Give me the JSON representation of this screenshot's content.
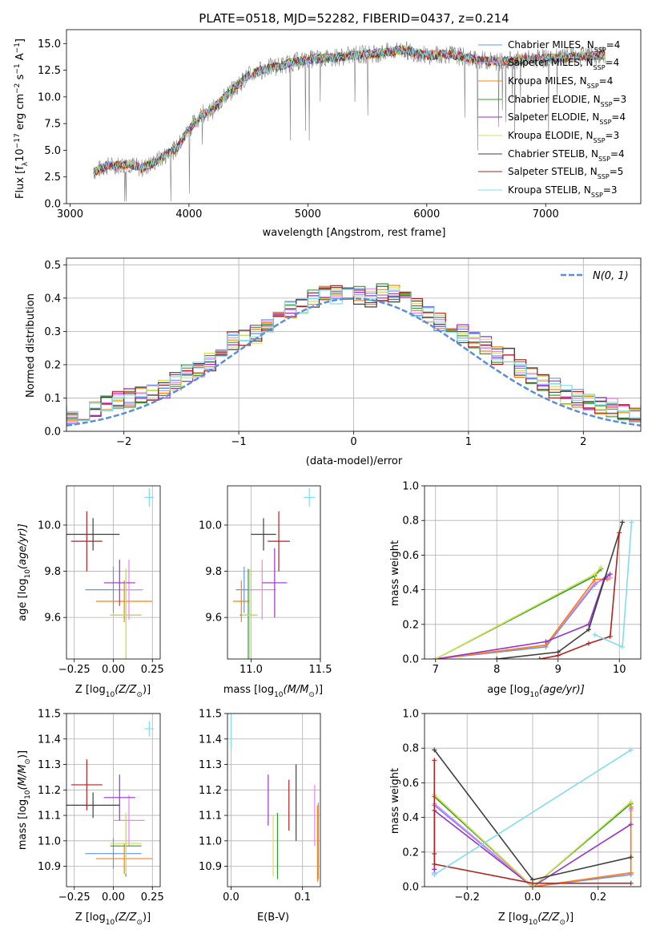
{
  "chart_data": [
    {
      "type": "line",
      "title": "PLATE=0518, MJD=52282, FIBERID=0437, z=0.214",
      "xlabel": "wavelength [Angstrom, rest frame]",
      "ylabel_main": "Flux [f",
      "ylabel_sub": "λ",
      "ylabel_rest": "10",
      "ylabel_exp1": "−17",
      "ylabel_mid": " erg cm",
      "ylabel_exp2": "−2",
      "ylabel_s": " s",
      "ylabel_exp3": "−1",
      "ylabel_a": " A",
      "ylabel_exp4": "−1",
      "ylabel_end": "]",
      "xlim": [
        2970,
        7800
      ],
      "ylim": [
        0,
        16.3
      ],
      "xticks": [
        "3000",
        "4000",
        "5000",
        "6000",
        "7000"
      ],
      "xtick_values": [
        3000,
        4000,
        5000,
        6000,
        7000
      ],
      "yticks": [
        "0.0",
        "2.5",
        "5.0",
        "7.5",
        "10.0",
        "12.5",
        "15.0"
      ],
      "ytick_values": [
        0,
        2.5,
        5,
        7.5,
        10,
        12.5,
        15
      ],
      "spectrum_shape": {
        "x": [
          3200,
          3300,
          3400,
          3500,
          3600,
          3700,
          3800,
          3900,
          4000,
          4100,
          4200,
          4300,
          4400,
          4500,
          4600,
          4700,
          4800,
          4900,
          5000,
          5200,
          5400,
          5600,
          5800,
          6000,
          6200,
          6400,
          6600,
          6800,
          7000,
          7200,
          7400,
          7500
        ],
        "y": [
          3.0,
          3.5,
          3.6,
          3.7,
          3.3,
          3.8,
          4.5,
          5.2,
          7.0,
          8.3,
          8.8,
          10.0,
          11.0,
          12.0,
          12.5,
          12.8,
          13.0,
          13.3,
          13.5,
          13.7,
          13.9,
          14.1,
          14.4,
          13.9,
          14.0,
          13.5,
          13.3,
          13.5,
          13.6,
          13.7,
          13.9,
          13.9
        ]
      },
      "legend_position": "upper right",
      "legend": [
        {
          "name": "Chabrier MILES, N",
          "sub": "SSP",
          "tail": "=4",
          "color": "#6495ed"
        },
        {
          "name": "Salpeter MILES, N",
          "sub": "SSP",
          "tail": "=4",
          "color": "#ee82ee"
        },
        {
          "name": "Kroupa MILES, N",
          "sub": "SSP",
          "tail": "=4",
          "color": "#ff7f0e"
        },
        {
          "name": "Chabrier ELODIE, N",
          "sub": "SSP",
          "tail": "=3",
          "color": "#2ca02c"
        },
        {
          "name": "Salpeter ELODIE, N",
          "sub": "SSP",
          "tail": "=4",
          "color": "#9932cc"
        },
        {
          "name": "Kroupa ELODIE, N",
          "sub": "SSP",
          "tail": "=3",
          "color": "#d4e157"
        },
        {
          "name": "Chabrier STELIB, N",
          "sub": "SSP",
          "tail": "=4",
          "color": "#404040"
        },
        {
          "name": "Salpeter STELIB, N",
          "sub": "SSP",
          "tail": "=5",
          "color": "#b22222"
        },
        {
          "name": "Kroupa STELIB, N",
          "sub": "SSP",
          "tail": "=3",
          "color": "#80deea"
        }
      ]
    },
    {
      "type": "bar",
      "xlabel": "(data-model)/error",
      "ylabel": "Normed distribution",
      "xlim": [
        -2.5,
        2.5
      ],
      "ylim": [
        0,
        0.52
      ],
      "xticks": [
        "−2",
        "−1",
        "0",
        "1",
        "2"
      ],
      "xtick_values": [
        -2,
        -1,
        0,
        1,
        2
      ],
      "yticks": [
        "0.0",
        "0.1",
        "0.2",
        "0.3",
        "0.4",
        "0.5"
      ],
      "ytick_values": [
        0,
        0.1,
        0.2,
        0.3,
        0.4,
        0.5
      ],
      "legend_label": "N(0, 1)",
      "legend_position": "upper right",
      "gauss_color": "#5b8ed6",
      "bin_width": 0.1,
      "hist_colors": [
        "#6495ed",
        "#ee82ee",
        "#ff7f0e",
        "#2ca02c",
        "#9932cc",
        "#d4e157",
        "#404040",
        "#b22222",
        "#80deea"
      ],
      "hist_shape": [
        0.03,
        0.03,
        0.03,
        0.04,
        0.05,
        0.05,
        0.06,
        0.07,
        0.08,
        0.09,
        0.1,
        0.11,
        0.12,
        0.13,
        0.15,
        0.17,
        0.19,
        0.21,
        0.24,
        0.27,
        0.28,
        0.29,
        0.32,
        0.34,
        0.37,
        0.38,
        0.4,
        0.42,
        0.41,
        0.42,
        0.41,
        0.4,
        0.42,
        0.41,
        0.4,
        0.37,
        0.35,
        0.33,
        0.31,
        0.29,
        0.28,
        0.26,
        0.23,
        0.22,
        0.19,
        0.17,
        0.15,
        0.13,
        0.11,
        0.1,
        0.09,
        0.08,
        0.07,
        0.06,
        0.05,
        0.05,
        0.04,
        0.04,
        0.03,
        0.03
      ]
    },
    {
      "type": "scatter",
      "xlabel": "Z [log",
      "xlabel_sub": "10",
      "xlabel_rest": "(Z/Z",
      "xlabel_sun": "⊙",
      "xlabel_end": ")]",
      "ylabel": "age  [log",
      "ylabel_sub": "10",
      "ylabel_rest": "(age/yr)]",
      "xlim": [
        -0.3,
        0.3
      ],
      "ylim": [
        9.42,
        10.17
      ],
      "xticks": [
        "−0.25",
        "0.00",
        "0.25"
      ],
      "xtick_values": [
        -0.25,
        0,
        0.25
      ],
      "yticks": [
        "9.6",
        "9.8",
        "10.0"
      ],
      "ytick_values": [
        9.6,
        9.8,
        10.0
      ],
      "points": [
        {
          "x": 0.0,
          "y": 9.72,
          "xerr": 0.18,
          "yerr": 0.1,
          "color": "#6495ed"
        },
        {
          "x": 0.1,
          "y": 9.72,
          "xerr": 0.09,
          "yerr": 0.13,
          "color": "#ee82ee"
        },
        {
          "x": 0.07,
          "y": 9.67,
          "xerr": 0.18,
          "yerr": 0.09,
          "color": "#ff7f0e"
        },
        {
          "x": 0.08,
          "y": 9.61,
          "xerr": 0.1,
          "yerr": 0.2,
          "color": "#2ca02c"
        },
        {
          "x": 0.04,
          "y": 9.75,
          "xerr": 0.1,
          "yerr": 0.1,
          "color": "#9932cc"
        },
        {
          "x": 0.08,
          "y": 9.61,
          "xerr": 0.1,
          "yerr": 0.2,
          "color": "#d4e157"
        },
        {
          "x": -0.13,
          "y": 9.96,
          "xerr": 0.17,
          "yerr": 0.07,
          "color": "#404040"
        },
        {
          "x": -0.17,
          "y": 9.93,
          "xerr": 0.1,
          "yerr": 0.13,
          "color": "#b22222"
        },
        {
          "x": 0.23,
          "y": 10.12,
          "xerr": 0.03,
          "yerr": 0.04,
          "color": "#80deea"
        }
      ]
    },
    {
      "type": "scatter",
      "xlabel": "mass [log",
      "xlabel_sub": "10",
      "xlabel_rest": "(M/M",
      "xlabel_sun": "⊙",
      "xlabel_end": ")]",
      "xlim": [
        10.83,
        11.5
      ],
      "ylim": [
        9.42,
        10.17
      ],
      "xticks": [
        "11.0",
        "11.5"
      ],
      "xtick_values": [
        11.0,
        11.5
      ],
      "yticks": [
        "9.6",
        "9.8",
        "10.0"
      ],
      "ytick_values": [
        9.6,
        9.8,
        10.0
      ],
      "points": [
        {
          "x": 10.95,
          "y": 9.72,
          "xerr": 0.06,
          "yerr": 0.1,
          "color": "#6495ed"
        },
        {
          "x": 11.08,
          "y": 9.72,
          "xerr": 0.1,
          "yerr": 0.13,
          "color": "#ee82ee"
        },
        {
          "x": 10.93,
          "y": 9.67,
          "xerr": 0.06,
          "yerr": 0.09,
          "color": "#ff7f0e"
        },
        {
          "x": 10.98,
          "y": 9.61,
          "xerr": 0.06,
          "yerr": 0.2,
          "color": "#2ca02c"
        },
        {
          "x": 11.17,
          "y": 9.75,
          "xerr": 0.09,
          "yerr": 0.15,
          "color": "#9932cc"
        },
        {
          "x": 10.99,
          "y": 9.61,
          "xerr": 0.06,
          "yerr": 0.2,
          "color": "#d4e157"
        },
        {
          "x": 11.09,
          "y": 9.96,
          "xerr": 0.09,
          "yerr": 0.07,
          "color": "#404040"
        },
        {
          "x": 11.2,
          "y": 9.93,
          "xerr": 0.08,
          "yerr": 0.13,
          "color": "#b22222"
        },
        {
          "x": 11.42,
          "y": 10.12,
          "xerr": 0.04,
          "yerr": 0.04,
          "color": "#80deea"
        }
      ]
    },
    {
      "type": "line",
      "xlabel": "age  [log",
      "xlabel_sub": "10",
      "xlabel_rest": "(age/yr)]",
      "ylabel": "mass weight",
      "xlim": [
        6.82,
        10.35
      ],
      "ylim": [
        0,
        1.0
      ],
      "xticks": [
        "7",
        "8",
        "9",
        "10"
      ],
      "xtick_values": [
        7,
        8,
        9,
        10
      ],
      "yticks": [
        "0.0",
        "0.2",
        "0.4",
        "0.6",
        "0.8",
        "1.0"
      ],
      "ytick_values": [
        0,
        0.2,
        0.4,
        0.6,
        0.8,
        1.0
      ],
      "series": [
        {
          "color": "#6495ed",
          "x": [
            7.0,
            8.8,
            9.6,
            9.8
          ],
          "y": [
            0.0,
            0.07,
            0.43,
            0.48
          ]
        },
        {
          "color": "#ee82ee",
          "x": [
            7.0,
            8.8,
            9.6,
            9.85
          ],
          "y": [
            0.0,
            0.08,
            0.44,
            0.47
          ]
        },
        {
          "color": "#ff7f0e",
          "x": [
            7.0,
            8.8,
            9.6,
            9.8
          ],
          "y": [
            0.0,
            0.08,
            0.46,
            0.46
          ]
        },
        {
          "color": "#2ca02c",
          "x": [
            7.0,
            9.6,
            9.7
          ],
          "y": [
            0.0,
            0.48,
            0.52
          ]
        },
        {
          "color": "#9932cc",
          "x": [
            7.0,
            8.8,
            9.5,
            9.75,
            9.85
          ],
          "y": [
            0.0,
            0.1,
            0.2,
            0.46,
            0.49
          ]
        },
        {
          "color": "#d4e157",
          "x": [
            7.0,
            9.6,
            9.7
          ],
          "y": [
            0.0,
            0.49,
            0.53
          ]
        },
        {
          "color": "#404040",
          "x": [
            8.0,
            9.0,
            9.5,
            10.05
          ],
          "y": [
            0.0,
            0.04,
            0.17,
            0.79
          ]
        },
        {
          "color": "#b22222",
          "x": [
            8.7,
            9.0,
            9.5,
            9.85,
            10.0
          ],
          "y": [
            0.0,
            0.02,
            0.09,
            0.13,
            0.73
          ]
        },
        {
          "color": "#80deea",
          "x": [
            9.6,
            10.05,
            10.2
          ],
          "y": [
            0.14,
            0.07,
            0.79
          ]
        }
      ]
    },
    {
      "type": "scatter",
      "xlabel": "Z [log",
      "xlabel_sub": "10",
      "xlabel_rest": "(Z/Z",
      "xlabel_sun": "⊙",
      "xlabel_end": ")]",
      "ylabel": "mass [log",
      "ylabel_sub": "10",
      "ylabel_rest": "(M/M",
      "ylabel_sun": "⊙",
      "ylabel_end": ")]",
      "xlim": [
        -0.3,
        0.3
      ],
      "ylim": [
        10.82,
        11.5
      ],
      "xticks": [
        "−0.25",
        "0.00",
        "0.25"
      ],
      "xtick_values": [
        -0.25,
        0,
        0.25
      ],
      "yticks": [
        "10.9",
        "11.0",
        "11.1",
        "11.2",
        "11.3",
        "11.4",
        "11.5"
      ],
      "ytick_values": [
        10.9,
        11.0,
        11.1,
        11.2,
        11.3,
        11.4,
        11.5
      ],
      "points": [
        {
          "x": 0.0,
          "y": 10.95,
          "xerr": 0.18,
          "yerr": 0.06,
          "color": "#6495ed"
        },
        {
          "x": 0.1,
          "y": 11.08,
          "xerr": 0.1,
          "yerr": 0.1,
          "color": "#ee82ee"
        },
        {
          "x": 0.07,
          "y": 10.93,
          "xerr": 0.18,
          "yerr": 0.06,
          "color": "#ff7f0e"
        },
        {
          "x": 0.08,
          "y": 10.98,
          "xerr": 0.1,
          "yerr": 0.12,
          "color": "#2ca02c"
        },
        {
          "x": 0.04,
          "y": 11.17,
          "xerr": 0.1,
          "yerr": 0.09,
          "color": "#9932cc"
        },
        {
          "x": 0.08,
          "y": 10.99,
          "xerr": 0.1,
          "yerr": 0.12,
          "color": "#d4e157"
        },
        {
          "x": -0.13,
          "y": 11.14,
          "xerr": 0.17,
          "yerr": 0.05,
          "color": "#404040"
        },
        {
          "x": -0.17,
          "y": 11.22,
          "xerr": 0.1,
          "yerr": 0.1,
          "color": "#b22222"
        },
        {
          "x": 0.23,
          "y": 11.44,
          "xerr": 0.03,
          "yerr": 0.03,
          "color": "#80deea"
        }
      ]
    },
    {
      "type": "scatter",
      "xlabel": "E(B-V)",
      "xlim": [
        -0.005,
        0.125
      ],
      "ylim": [
        10.82,
        11.5
      ],
      "xticks": [
        "0.0",
        "0.1"
      ],
      "xtick_values": [
        0.0,
        0.1
      ],
      "yticks": [
        "10.9",
        "11.0",
        "11.1",
        "11.2",
        "11.3",
        "11.4",
        "11.5"
      ],
      "ytick_values": [
        10.9,
        11.0,
        11.1,
        11.2,
        11.3,
        11.4,
        11.5
      ],
      "points": [
        {
          "x": 0.122,
          "y": 11.0,
          "yerr": 0.15,
          "color": "#6495ed"
        },
        {
          "x": 0.117,
          "y": 11.1,
          "yerr": 0.12,
          "color": "#ee82ee"
        },
        {
          "x": 0.121,
          "y": 10.99,
          "yerr": 0.15,
          "color": "#ff7f0e"
        },
        {
          "x": 0.065,
          "y": 10.98,
          "yerr": 0.13,
          "color": "#2ca02c"
        },
        {
          "x": 0.052,
          "y": 11.16,
          "yerr": 0.1,
          "color": "#9932cc"
        },
        {
          "x": 0.059,
          "y": 10.98,
          "yerr": 0.12,
          "color": "#d4e157"
        },
        {
          "x": 0.091,
          "y": 11.15,
          "yerr": 0.15,
          "color": "#404040"
        },
        {
          "x": 0.081,
          "y": 11.14,
          "yerr": 0.1,
          "color": "#b22222"
        },
        {
          "x": 0.0,
          "y": 11.43,
          "yerr": 0.07,
          "color": "#80deea"
        }
      ]
    },
    {
      "type": "line",
      "xlabel": "Z [log",
      "xlabel_sub": "10",
      "xlabel_rest": "(Z/Z",
      "xlabel_sun": "⊙",
      "xlabel_end": ")]",
      "ylabel": "mass weight",
      "xlim": [
        -0.33,
        0.33
      ],
      "ylim": [
        0,
        1.0
      ],
      "xticks": [
        "−0.2",
        "0.0",
        "0.2"
      ],
      "xtick_values": [
        -0.2,
        0,
        0.2
      ],
      "yticks": [
        "0.0",
        "0.2",
        "0.4",
        "0.6",
        "0.8",
        "1.0"
      ],
      "ytick_values": [
        0,
        0.2,
        0.4,
        0.6,
        0.8,
        1.0
      ],
      "series": [
        {
          "color": "#6495ed",
          "x": [
            -0.3,
            -0.3,
            0.0,
            0.3,
            0.3
          ],
          "y": [
            0.07,
            0.47,
            0.0,
            0.07,
            0.45
          ]
        },
        {
          "color": "#ee82ee",
          "x": [
            -0.3,
            -0.3,
            0.0,
            0.3,
            0.3
          ],
          "y": [
            0.08,
            0.48,
            0.0,
            0.08,
            0.44
          ]
        },
        {
          "color": "#ff7f0e",
          "x": [
            -0.3,
            -0.3,
            0.0,
            0.3,
            0.3
          ],
          "y": [
            0.1,
            0.53,
            0.0,
            0.08,
            0.46
          ]
        },
        {
          "color": "#2ca02c",
          "x": [
            -0.3,
            0.0,
            0.3
          ],
          "y": [
            0.52,
            0.0,
            0.48
          ]
        },
        {
          "color": "#9932cc",
          "x": [
            -0.3,
            -0.3,
            0.0,
            0.3
          ],
          "y": [
            0.1,
            0.44,
            0.0,
            0.36
          ]
        },
        {
          "color": "#d4e157",
          "x": [
            -0.3,
            0.0,
            0.3
          ],
          "y": [
            0.53,
            0.0,
            0.49
          ]
        },
        {
          "color": "#404040",
          "x": [
            -0.3,
            0.0,
            0.3
          ],
          "y": [
            0.79,
            0.04,
            0.17
          ]
        },
        {
          "color": "#b22222",
          "x": [
            -0.3,
            -0.3,
            -0.3,
            0.0,
            0.3
          ],
          "y": [
            0.73,
            0.19,
            0.13,
            0.02,
            0.02
          ]
        },
        {
          "color": "#80deea",
          "x": [
            -0.3,
            0.3
          ],
          "y": [
            0.07,
            0.79
          ]
        }
      ]
    }
  ]
}
